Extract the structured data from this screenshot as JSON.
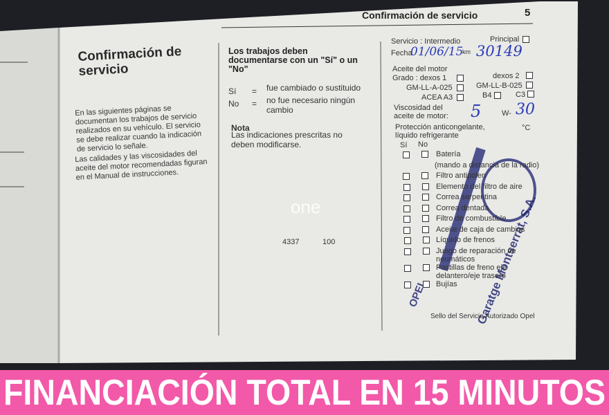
{
  "header": {
    "title": "Confirmación de servicio",
    "page": "5"
  },
  "left_column": {
    "heading": "Confirmación de servicio",
    "paragraphs": [
      "En las siguientes páginas se documentan los trabajos de servicio realizados en su vehículo. El servicio se debe realizar cuando la indicación de servicio lo señale.",
      "Las calidades y las viscosidades del aceite del motor recomendadas figuran en el Manual de instrucciones."
    ]
  },
  "middle_column": {
    "heading": "Los trabajos deben documentarse con un \"Sí\" o un \"No\"",
    "legend": [
      {
        "key": "Sí",
        "sep": "=",
        "text": "fue cambiado o sustituido"
      },
      {
        "key": "No",
        "sep": "=",
        "text": "no fue necesario ningún cambio"
      }
    ],
    "note_title": "Nota",
    "note": "Las indicaciones prescritas no deben modificarse."
  },
  "watermark": {
    "logo": "one",
    "numbers": [
      "4337",
      "100"
    ]
  },
  "form": {
    "service": "Servicio : Intermedio",
    "principal": "Principal",
    "date_label": "Fecha",
    "date_value": "01/06/15",
    "km_label": "km",
    "km_value": "30149",
    "oil_title": "Aceite del motor",
    "grades": [
      "Grado : dexos 1",
      "dexos 2",
      "GM-LL-A-025",
      "GM-LL-B-025",
      "ACEA A3",
      "B4",
      "C3"
    ],
    "viscosity_label": "Viscosidad del aceite de motor:",
    "viscosity_a": "5",
    "viscosity_w": "W-",
    "viscosity_b": "30",
    "antifreeze": "Protección anticongelante, líquido refrigerante",
    "degrees": "°C",
    "yes": "Sí",
    "no": "No",
    "items": [
      "Batería",
      "(mando a distancia de la radio)",
      "Filtro antipolen",
      "Elemento del filtro de aire",
      "Correa serpentina",
      "Correa dentada",
      "Filtro de combustible",
      "Aceite de caja de cambios",
      "Líquido de frenos",
      "Juego de reparación de neumáticos",
      "Pastillas de freno eje delantero/eje trasero",
      "Bujías"
    ],
    "footer": "Sello del Servicio Autorizado Opel"
  },
  "stamp": {
    "name": "Garatge Montserrat, S.A.",
    "brand": "OPEL"
  },
  "banner": "FINANCIACIÓN TOTAL EN 15 MINUTOS"
}
